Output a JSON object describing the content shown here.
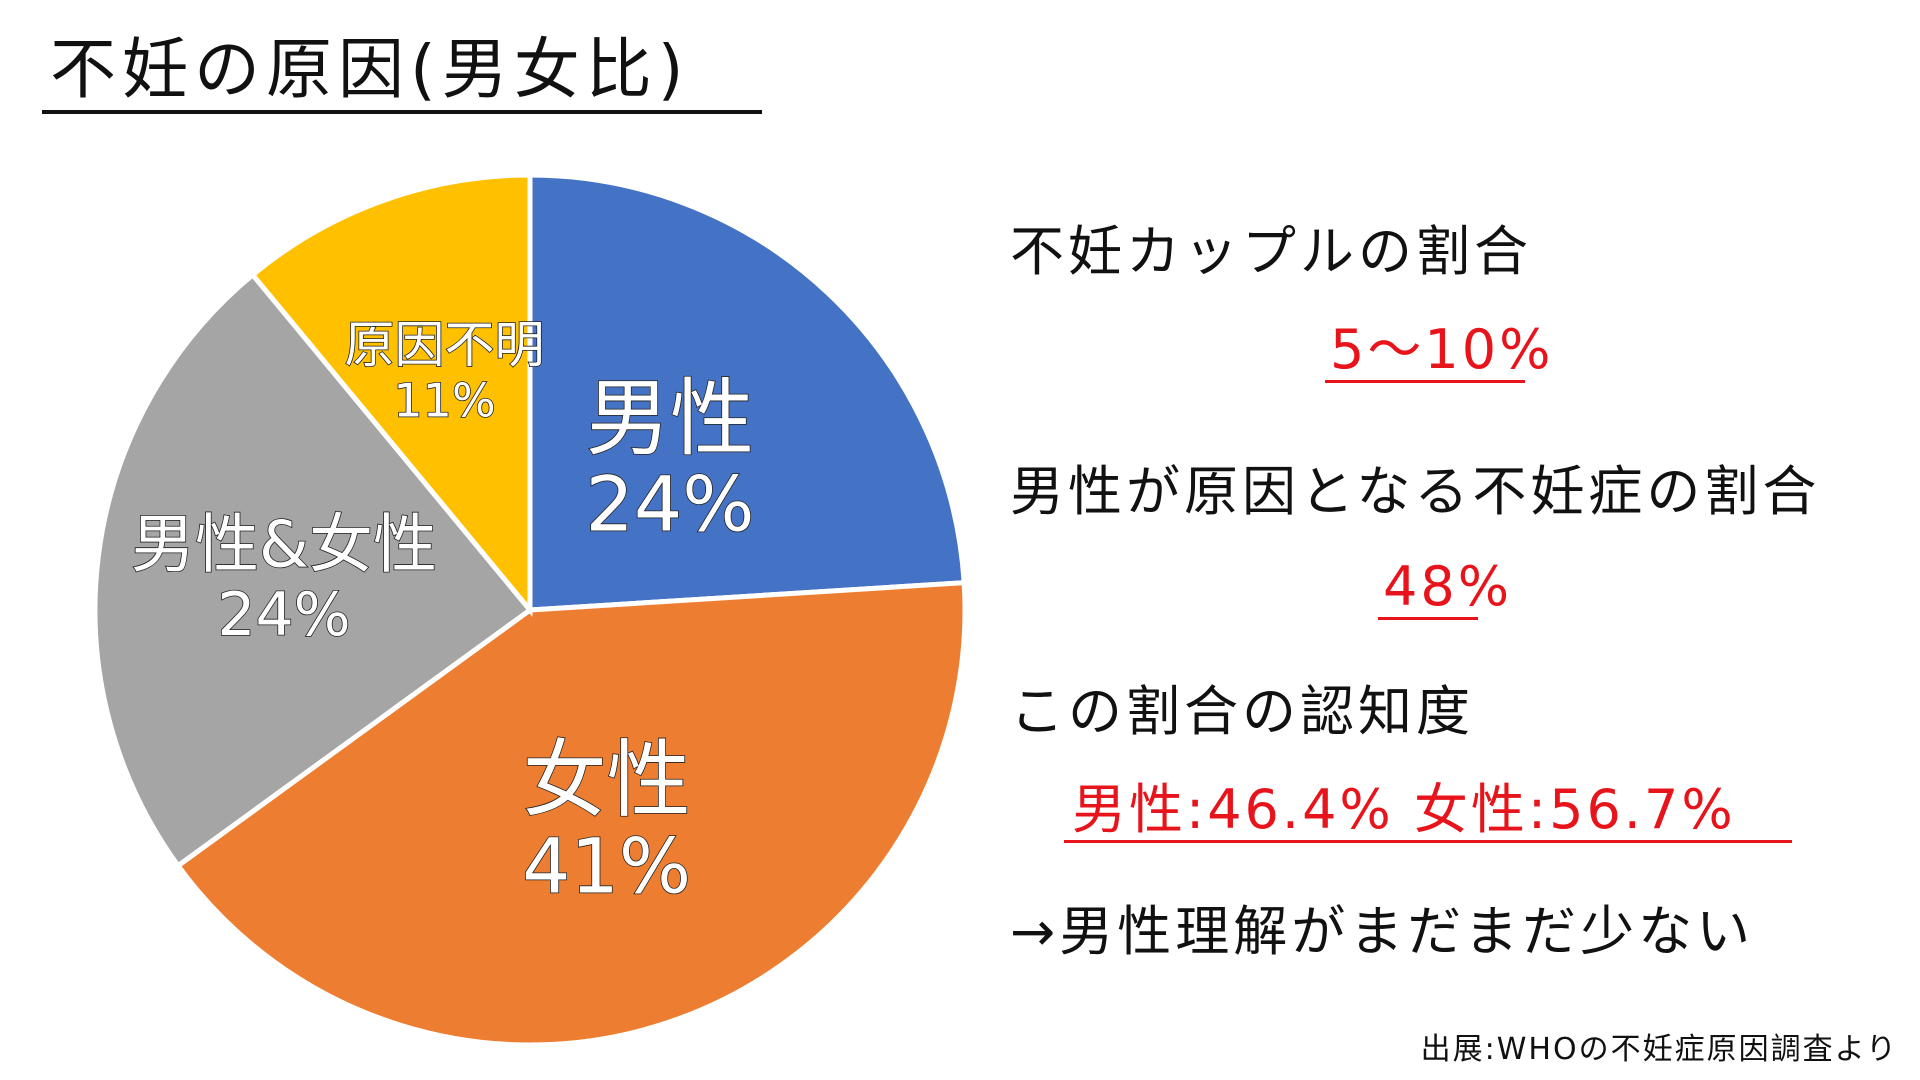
{
  "title": "不妊の原因(男女比)",
  "chart_data": {
    "type": "pie",
    "slices": [
      {
        "name": "男性",
        "value": 24,
        "label": "24%",
        "color": "#4472c4"
      },
      {
        "name": "女性",
        "value": 41,
        "label": "41%",
        "color": "#ed7d31"
      },
      {
        "name": "男性&女性",
        "value": 24,
        "label": "24%",
        "color": "#a5a5a5"
      },
      {
        "name": "原因不明",
        "value": 11,
        "label": "11%",
        "color": "#ffc000"
      }
    ]
  },
  "facts": [
    {
      "heading": "不妊カップルの割合",
      "value": "5〜10%"
    },
    {
      "heading": "男性が原因となる不妊症の割合",
      "value": "48%"
    },
    {
      "heading": "この割合の認知度",
      "value": "男性:46.4% 女性:56.7%"
    }
  ],
  "conclusion": "→男性理解がまだまだ少ない",
  "source": "出展:WHOの不妊症原因調査より"
}
